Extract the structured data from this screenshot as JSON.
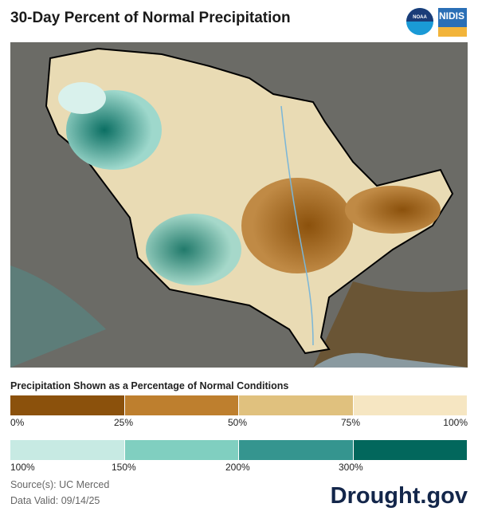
{
  "title": "30-Day Percent of Normal Precipitation",
  "logos": {
    "noaa": "NOAA",
    "nidis": "NIDIS"
  },
  "legend": {
    "title": "Precipitation Shown as a Percentage of Normal Conditions",
    "dry": {
      "colors": [
        "#8b510c",
        "#be7f2e",
        "#e0c17e",
        "#f6e6c2"
      ],
      "ticks": [
        "0%",
        "25%",
        "50%",
        "75%",
        "100%"
      ]
    },
    "wet": {
      "colors": [
        "#c7eae3",
        "#80cfc0",
        "#35958f",
        "#02675c"
      ],
      "ticks": [
        "100%",
        "150%",
        "200%",
        "300%"
      ]
    }
  },
  "source": "Source(s): UC Merced",
  "valid": "Data Valid: 09/14/25",
  "brand": "Drought.gov"
}
